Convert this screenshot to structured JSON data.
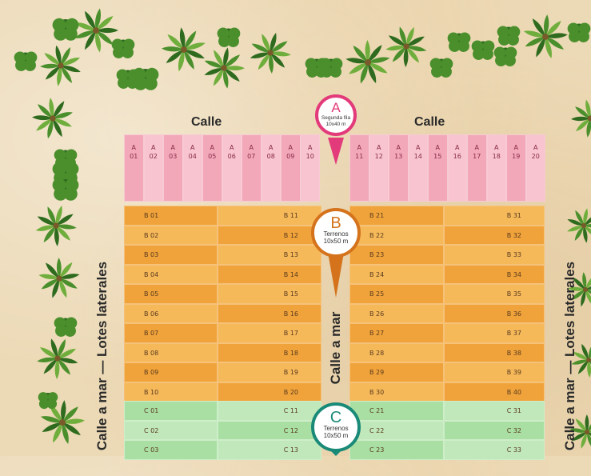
{
  "streets": {
    "top_left": "Calle",
    "top_right": "Calle",
    "center": "Calle a mar",
    "left_side": "Calle a mar — Lotes laterales",
    "right_side": "Calle a mar — Lotes laterales"
  },
  "pins": {
    "a": {
      "letter": "A",
      "line1": "Segunda fila",
      "line2": "10x40 m",
      "color": "#e23a7a"
    },
    "b": {
      "letter": "B",
      "line1": "Terrenos",
      "line2": "10x50 m",
      "color": "#d4731c"
    },
    "c": {
      "letter": "C",
      "line1": "Terrenos",
      "line2": "10x50 m",
      "color": "#1a8a78"
    }
  },
  "row_a_left": [
    {
      "top": "A",
      "num": "01"
    },
    {
      "top": "A",
      "num": "02"
    },
    {
      "top": "A",
      "num": "03"
    },
    {
      "top": "A",
      "num": "04"
    },
    {
      "top": "A",
      "num": "05"
    },
    {
      "top": "A",
      "num": "06"
    },
    {
      "top": "A",
      "num": "07"
    },
    {
      "top": "A",
      "num": "08"
    },
    {
      "top": "A",
      "num": "09"
    },
    {
      "top": "A",
      "num": "10"
    }
  ],
  "row_a_right": [
    {
      "top": "A",
      "num": "11"
    },
    {
      "top": "A",
      "num": "12"
    },
    {
      "top": "A",
      "num": "13"
    },
    {
      "top": "A",
      "num": "14"
    },
    {
      "top": "A",
      "num": "15"
    },
    {
      "top": "A",
      "num": "16"
    },
    {
      "top": "A",
      "num": "17"
    },
    {
      "top": "A",
      "num": "18"
    },
    {
      "top": "A",
      "num": "19"
    },
    {
      "top": "A",
      "num": "20"
    }
  ],
  "lots_b": {
    "col1": [
      "B 01",
      "B 02",
      "B 03",
      "B 04",
      "B 05",
      "B 06",
      "B 07",
      "B 08",
      "B 09",
      "B 10"
    ],
    "col2": [
      "B 11",
      "B 12",
      "B 13",
      "B 14",
      "B 15",
      "B 16",
      "B 17",
      "B 18",
      "B 19",
      "B 20"
    ],
    "col3": [
      "B 21",
      "B 22",
      "B 23",
      "B 24",
      "B 25",
      "B 26",
      "B 27",
      "B 28",
      "B 29",
      "B 30"
    ],
    "col4": [
      "B 31",
      "B 32",
      "B 33",
      "B 34",
      "B 35",
      "B 36",
      "B 37",
      "B 38",
      "B 39",
      "B 40"
    ]
  },
  "lots_c": {
    "col1": [
      "C 01",
      "C 02",
      "C 03"
    ],
    "col2": [
      "C 11",
      "C 12",
      "C 13"
    ],
    "col3": [
      "C 21",
      "C 22",
      "C 23"
    ],
    "col4": [
      "C 31",
      "C 32",
      "C 33"
    ]
  },
  "palette": {
    "palm_dark": "#2f6b1f",
    "palm_mid": "#4a8f2c",
    "palm_light": "#6fae3c",
    "trunk": "#7a5a2a"
  }
}
